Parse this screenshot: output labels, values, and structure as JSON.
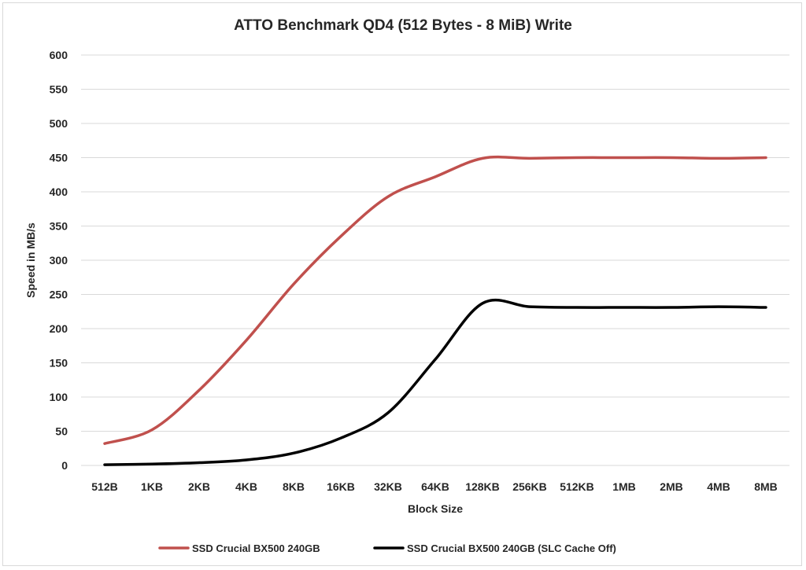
{
  "chart_data": {
    "type": "line",
    "title": "ATTO Benchmark QD4 (512 Bytes - 8 MiB) Write",
    "xlabel": "Block Size",
    "ylabel": "Speed in MB/s",
    "categories": [
      "512B",
      "1KB",
      "2KB",
      "4KB",
      "8KB",
      "16KB",
      "32KB",
      "64KB",
      "128KB",
      "256KB",
      "512KB",
      "1MB",
      "2MB",
      "4MB",
      "8MB"
    ],
    "ylim": [
      0,
      600
    ],
    "yticks": [
      0,
      50,
      100,
      150,
      200,
      250,
      300,
      350,
      400,
      450,
      500,
      550,
      600
    ],
    "grid": true,
    "legend_position": "bottom",
    "series": [
      {
        "name": "SSD Crucial BX500 240GB",
        "color": "#c0504d",
        "values": [
          32,
          52,
          110,
          183,
          265,
          335,
          393,
          422,
          449,
          449,
          450,
          450,
          450,
          449,
          450
        ]
      },
      {
        "name": "SSD Crucial BX500 240GB (SLC Cache Off)",
        "color": "#000000",
        "values": [
          1,
          2,
          4,
          8,
          18,
          40,
          77,
          155,
          237,
          232,
          231,
          231,
          231,
          232,
          231
        ]
      }
    ]
  }
}
